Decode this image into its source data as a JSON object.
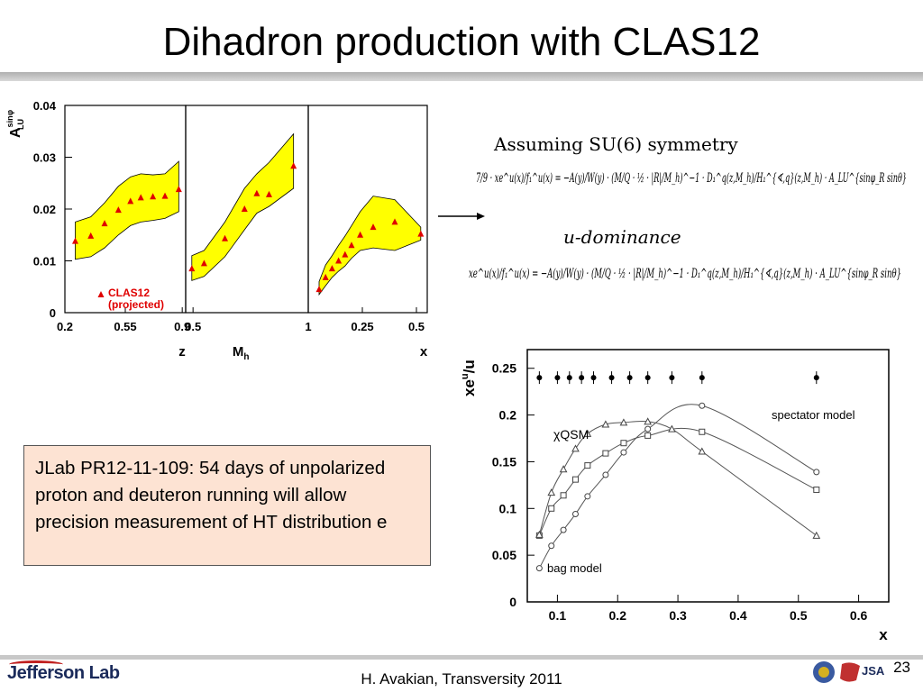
{
  "slide": {
    "title": "Dihadron production with CLAS12",
    "footer": "H. Avakian, Transversity 2011",
    "page_number": "23",
    "logo_text": "Jefferson Lab",
    "jsa_text": "JSA"
  },
  "note": {
    "text": "JLab PR12-11-109: 54 days of unpolarized proton and deuteron running will allow precision measurement of HT distribution e"
  },
  "equations": {
    "heading": "Assuming SU(6) symmetry",
    "subheading": "u-dominance",
    "eq1": "7/9 · xe^u(x)/f₁^u(x) = −A(y)/W(y) · (M/Q · ½ · |R|/M_h)^−1 · D₁^q(z,M_h)/H₁^{∢,q}(z,M_h) · A_LU^{sinφ_R sinθ}",
    "eq2": "xe^u(x)/f₁^u(x) = −A(y)/W(y) · (M/Q · ½ · |R|/M_h)^−1 · D₁^q(z,M_h)/H₁^{∢,q}(z,M_h) · A_LU^{sinφ_R sinθ}"
  },
  "chart_data": [
    {
      "type": "scatter",
      "panels": [
        {
          "xlabel": "z",
          "ticks": [
            "0.2",
            "0.55",
            "0.9"
          ]
        },
        {
          "xlabel": "Mh",
          "ticks": [
            "0.5",
            "1"
          ]
        },
        {
          "xlabel": "x",
          "ticks": [
            "0.25",
            "0.5"
          ]
        }
      ],
      "ylabel": "A_LU^sinφ",
      "yticks": [
        "0",
        "0.01",
        "0.02",
        "0.03",
        "0.04"
      ],
      "ylim": [
        0,
        0.04
      ],
      "legend": "CLAS12 (projected)",
      "marker_color": "#e00000",
      "band_color": "#ffff00",
      "series": [
        {
          "panel": 0,
          "x": [
            0.26,
            0.35,
            0.43,
            0.51,
            0.58,
            0.64,
            0.71,
            0.78,
            0.86
          ],
          "y": [
            0.0138,
            0.0148,
            0.0172,
            0.0198,
            0.0215,
            0.0222,
            0.0224,
            0.0225,
            0.0238
          ],
          "band_low": [
            0.0103,
            0.0108,
            0.0125,
            0.015,
            0.0168,
            0.0175,
            0.0178,
            0.0182,
            0.0195
          ],
          "band_high": [
            0.0175,
            0.0185,
            0.0212,
            0.0244,
            0.0262,
            0.0268,
            0.0266,
            0.0268,
            0.0292
          ]
        },
        {
          "panel": 1,
          "x": [
            0.45,
            0.55,
            0.72,
            0.88,
            0.98,
            1.08,
            1.28
          ],
          "y": [
            0.0085,
            0.0095,
            0.0143,
            0.02,
            0.023,
            0.0228,
            0.0283
          ],
          "band_low": [
            0.0062,
            0.007,
            0.0108,
            0.016,
            0.0192,
            0.0205,
            0.024
          ],
          "band_high": [
            0.011,
            0.012,
            0.0175,
            0.024,
            0.0268,
            0.029,
            0.0345
          ]
        },
        {
          "panel": 2,
          "x": [
            0.05,
            0.08,
            0.11,
            0.14,
            0.17,
            0.2,
            0.24,
            0.3,
            0.4,
            0.52
          ],
          "y": [
            0.0045,
            0.0068,
            0.0085,
            0.01,
            0.0112,
            0.013,
            0.015,
            0.0165,
            0.0175,
            0.0152
          ],
          "band_low": [
            0.0035,
            0.0052,
            0.0068,
            0.008,
            0.009,
            0.0105,
            0.012,
            0.0125,
            0.012,
            0.014
          ],
          "band_high": [
            0.006,
            0.0092,
            0.011,
            0.013,
            0.0148,
            0.0168,
            0.0195,
            0.0225,
            0.0218,
            0.0165
          ]
        }
      ]
    },
    {
      "type": "line",
      "xlabel": "x",
      "ylabel": "xe^u/u",
      "xlim": [
        0.05,
        0.65
      ],
      "ylim": [
        0,
        0.27
      ],
      "xticks": [
        "0.1",
        "0.2",
        "0.3",
        "0.4",
        "0.5",
        "0.6"
      ],
      "yticks": [
        "0",
        "0.05",
        "0.1",
        "0.15",
        "0.2",
        "0.25"
      ],
      "series": [
        {
          "name": "spectator model",
          "marker": "circle",
          "x": [
            0.07,
            0.09,
            0.11,
            0.13,
            0.15,
            0.18,
            0.21,
            0.25,
            0.34,
            0.53
          ],
          "y": [
            0.036,
            0.06,
            0.077,
            0.094,
            0.113,
            0.136,
            0.16,
            0.185,
            0.21,
            0.139
          ]
        },
        {
          "name": "",
          "marker": "square",
          "x": [
            0.07,
            0.09,
            0.11,
            0.13,
            0.15,
            0.18,
            0.21,
            0.25,
            0.34,
            0.53
          ],
          "y": [
            0.071,
            0.1,
            0.114,
            0.131,
            0.146,
            0.159,
            0.17,
            0.178,
            0.182,
            0.12
          ]
        },
        {
          "name": "χQSM",
          "marker": "triangle",
          "x": [
            0.07,
            0.09,
            0.11,
            0.13,
            0.15,
            0.18,
            0.21,
            0.25,
            0.29,
            0.34,
            0.53
          ],
          "y": [
            0.072,
            0.117,
            0.142,
            0.164,
            0.18,
            0.19,
            0.192,
            0.193,
            0.185,
            0.161,
            0.071
          ]
        },
        {
          "name": "",
          "marker": "dot",
          "x": [
            0.07,
            0.1,
            0.12,
            0.14,
            0.16,
            0.19,
            0.22,
            0.25,
            0.29,
            0.34,
            0.53
          ],
          "y": [
            0.24,
            0.24,
            0.24,
            0.24,
            0.24,
            0.24,
            0.24,
            0.24,
            0.24,
            0.24,
            0.24
          ]
        }
      ],
      "annotations": {
        "bag": "bag model"
      }
    }
  ]
}
